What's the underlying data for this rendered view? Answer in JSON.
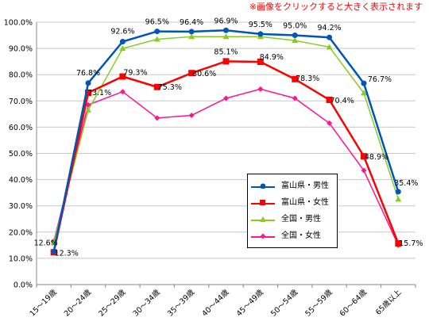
{
  "note": "※画像をクリックすると大きく表示されます",
  "chart_data": {
    "type": "line",
    "title": "",
    "xlabel": "",
    "ylabel": "",
    "ylim": [
      0,
      100
    ],
    "yticks": [
      0,
      10,
      20,
      30,
      40,
      50,
      60,
      70,
      80,
      90,
      100
    ],
    "ytick_labels": [
      "0.0%",
      "10.0%",
      "20.0%",
      "30.0%",
      "40.0%",
      "50.0%",
      "60.0%",
      "70.0%",
      "80.0%",
      "90.0%",
      "100.0%"
    ],
    "grid": true,
    "legend_position": "lower-right-center",
    "categories": [
      "15～19歳",
      "20～24歳",
      "25～29歳",
      "30～34歳",
      "35～39歳",
      "40～44歳",
      "45～49歳",
      "50～54歳",
      "55～59歳",
      "60～64歳",
      "65歳以上"
    ],
    "series": [
      {
        "name": "富山県・男性",
        "color": "#0055b8",
        "marker": "circle",
        "values": [
          12.6,
          76.8,
          92.6,
          96.5,
          96.4,
          96.9,
          95.5,
          95.0,
          94.2,
          76.7,
          35.4
        ],
        "labels": [
          "12.6%",
          "76.8%",
          "92.6%",
          "96.5%",
          "96.4%",
          "96.9%",
          "95.5%",
          "95.0%",
          "94.2%",
          "76.7%",
          "35.4%"
        ]
      },
      {
        "name": "富山県・女性",
        "color": "#ff0000",
        "marker": "square",
        "values": [
          12.3,
          73.1,
          79.3,
          75.3,
          80.6,
          85.1,
          84.9,
          78.3,
          70.4,
          48.9,
          15.7
        ],
        "labels": [
          "12.3%",
          "73.1%",
          "79.3%",
          "75.3%",
          "80.6%",
          "85.1%",
          "84.9%",
          "78.3%",
          "70.4%",
          "48.9%",
          "15.7%"
        ]
      },
      {
        "name": "全国・男性",
        "color": "#88cc22",
        "marker": "triangle",
        "values": [
          16.0,
          66.5,
          90.0,
          93.5,
          94.5,
          94.5,
          94.5,
          93.0,
          90.5,
          73.0,
          32.5
        ]
      },
      {
        "name": "全国・女性",
        "color": "#ff1493",
        "marker": "diamond",
        "values": [
          16.5,
          68.5,
          73.5,
          63.5,
          64.5,
          71.0,
          74.5,
          71.0,
          61.5,
          43.5,
          15.0
        ]
      }
    ]
  }
}
